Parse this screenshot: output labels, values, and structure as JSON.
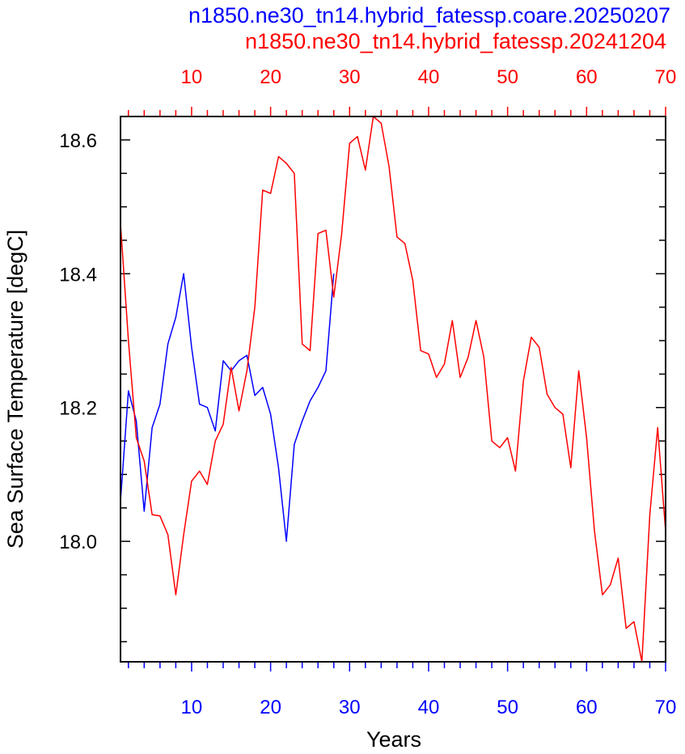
{
  "titles": {
    "top_line": "n1850.ne30_tn14.hybrid_fatessp.coare.20250207",
    "second_line": "n1850.ne30_tn14.hybrid_fatessp.20241204"
  },
  "chart_data": {
    "type": "line",
    "xlabel": "Years",
    "ylabel": "Sea Surface Temperature [degC]",
    "xlim": [
      1,
      70
    ],
    "ylim": [
      17.82,
      18.635
    ],
    "x_ticks": [
      10,
      20,
      30,
      40,
      50,
      60,
      70
    ],
    "y_ticks": [
      18.0,
      18.2,
      18.4,
      18.6
    ],
    "y_tick_labels": [
      "18.0",
      "18.2",
      "18.4",
      "18.6"
    ],
    "grid": false,
    "series": [
      {
        "name": "n1850.ne30_tn14.hybrid_fatessp.coare.20250207",
        "axis": "bottom",
        "color": "#0000ff",
        "x": [
          1,
          2,
          3,
          4,
          5,
          6,
          7,
          8,
          9,
          10,
          11,
          12,
          13,
          14,
          15,
          16,
          17,
          18,
          19,
          20,
          21,
          22,
          23,
          24,
          25,
          26,
          27,
          28
        ],
        "y": [
          18.06,
          18.225,
          18.18,
          18.045,
          18.17,
          18.205,
          18.295,
          18.335,
          18.4,
          18.29,
          18.205,
          18.2,
          18.165,
          18.27,
          18.255,
          18.27,
          18.278,
          18.218,
          18.23,
          18.19,
          18.11,
          18.0,
          18.145,
          18.18,
          18.21,
          18.23,
          18.255,
          18.4
        ]
      },
      {
        "name": "n1850.ne30_tn14.hybrid_fatessp.20241204",
        "axis": "top",
        "color": "#ff0000",
        "x": [
          1,
          2,
          3,
          4,
          5,
          6,
          7,
          8,
          9,
          10,
          11,
          12,
          13,
          14,
          15,
          16,
          17,
          18,
          19,
          20,
          21,
          22,
          23,
          24,
          25,
          26,
          27,
          28,
          29,
          30,
          31,
          32,
          33,
          34,
          35,
          36,
          37,
          38,
          39,
          40,
          41,
          42,
          43,
          44,
          45,
          46,
          47,
          48,
          49,
          50,
          51,
          52,
          53,
          54,
          55,
          56,
          57,
          58,
          59,
          60,
          61,
          62,
          63,
          64,
          65,
          66,
          67,
          68,
          69,
          70
        ],
        "y": [
          18.475,
          18.3,
          18.155,
          18.12,
          18.04,
          18.038,
          18.01,
          17.92,
          18.01,
          18.09,
          18.105,
          18.085,
          18.15,
          18.175,
          18.26,
          18.195,
          18.255,
          18.35,
          18.525,
          18.52,
          18.575,
          18.565,
          18.55,
          18.295,
          18.285,
          18.46,
          18.465,
          18.365,
          18.46,
          18.595,
          18.605,
          18.555,
          18.635,
          18.625,
          18.56,
          18.455,
          18.445,
          18.39,
          18.285,
          18.28,
          18.245,
          18.265,
          18.33,
          18.245,
          18.275,
          18.33,
          18.275,
          18.15,
          18.14,
          18.155,
          18.105,
          18.24,
          18.305,
          18.29,
          18.22,
          18.2,
          18.19,
          18.11,
          18.255,
          18.155,
          18.015,
          17.92,
          17.935,
          17.975,
          17.87,
          17.88,
          17.82,
          18.04,
          18.17,
          18.015
        ]
      }
    ]
  }
}
